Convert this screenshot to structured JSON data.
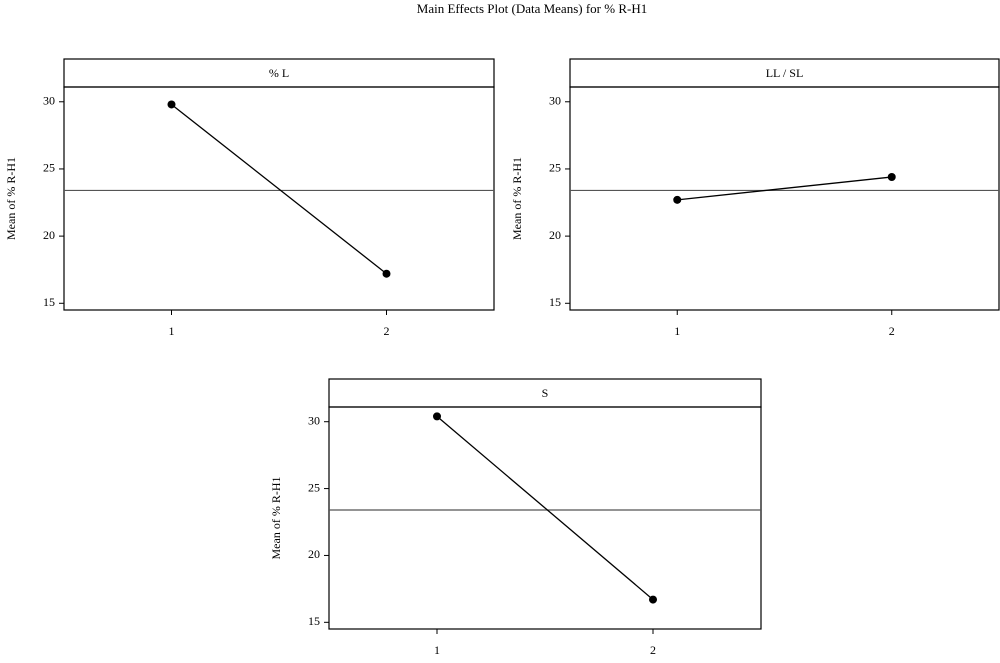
{
  "title": "Main Effects Plot (Data Means) for % R-H1",
  "chart_data": [
    {
      "type": "line",
      "title": "% L",
      "y_label": "Mean of % R-H1",
      "x": [
        1,
        2
      ],
      "values": [
        29.8,
        17.2
      ],
      "mean_line": 23.4,
      "color": "#000000",
      "xlim": [
        0.5,
        2.5
      ],
      "xticks": [
        1,
        2
      ],
      "ylim": [
        14.5,
        31.1
      ],
      "yticks": [
        15,
        20,
        25,
        30
      ]
    },
    {
      "type": "line",
      "title": "LL / SL",
      "y_label": "Mean of % R-H1",
      "x": [
        1,
        2
      ],
      "values": [
        22.7,
        24.4
      ],
      "mean_line": 23.4,
      "color": "#000000",
      "xlim": [
        0.5,
        2.5
      ],
      "xticks": [
        1,
        2
      ],
      "ylim": [
        14.5,
        31.1
      ],
      "yticks": [
        15,
        20,
        25,
        30
      ]
    },
    {
      "type": "line",
      "title": "S",
      "y_label": "Mean of % R-H1",
      "x": [
        1,
        2
      ],
      "values": [
        30.4,
        16.7
      ],
      "mean_line": 23.4,
      "color": "#000000",
      "xlim": [
        0.5,
        2.5
      ],
      "xticks": [
        1,
        2
      ],
      "ylim": [
        14.5,
        31.1
      ],
      "yticks": [
        15,
        20,
        25,
        30
      ]
    }
  ]
}
